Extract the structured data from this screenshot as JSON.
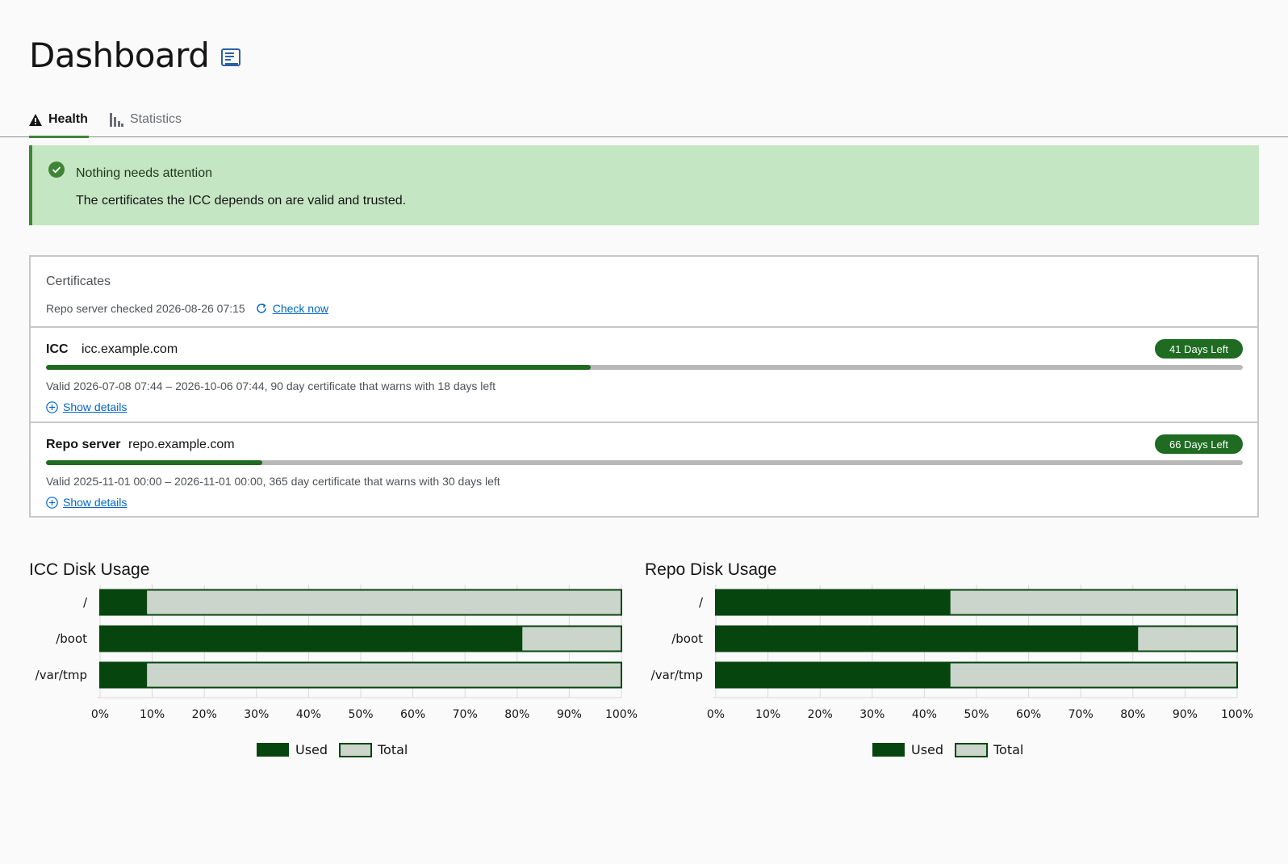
{
  "header": {
    "title": "Dashboard",
    "doc_icon": "doc-icon"
  },
  "tabs": [
    {
      "label": "Health",
      "icon": "warning-icon",
      "active": true
    },
    {
      "label": "Statistics",
      "icon": "bar-chart-icon",
      "active": false
    }
  ],
  "alert": {
    "title": "Nothing needs attention",
    "description": "The certificates the ICC depends on are valid and trusted.",
    "icon": "check-circle-icon",
    "color": "#3e8635"
  },
  "certificates": {
    "title": "Certificates",
    "checked_text": "Repo server checked 2026-08-26 07:15",
    "check_now": "Check now",
    "items": [
      {
        "name": "ICC",
        "host": "icc.example.com",
        "badge": "41 Days Left",
        "elapsed_fraction": 0.455,
        "validity": "Valid 2026-07-08 07:44 – 2026-10-06 07:44, 90 day certificate that warns with 18 days left",
        "details": "Show details"
      },
      {
        "name": "Repo server",
        "host": "repo.example.com",
        "badge": "66 Days Left",
        "elapsed_fraction": 0.181,
        "validity": "Valid 2025-11-01 00:00 – 2026-11-01 00:00, 365 day certificate that warns with 30 days left",
        "details": "Show details"
      }
    ]
  },
  "colors": {
    "accent": "#1e6b21",
    "used": "#07450f",
    "total": "#cbd5cb",
    "track": "#b8b8b8"
  },
  "chart_data": [
    {
      "type": "bar",
      "orientation": "horizontal",
      "stacked_overlay": true,
      "title": "ICC Disk Usage",
      "categories": [
        "/",
        "/boot",
        "/var/tmp"
      ],
      "series": [
        {
          "name": "Used",
          "values": [
            9,
            81,
            9
          ]
        },
        {
          "name": "Total",
          "values": [
            100,
            100,
            100
          ]
        }
      ],
      "xlim": [
        0,
        100
      ],
      "ticks": [
        "0%",
        "10%",
        "20%",
        "30%",
        "40%",
        "50%",
        "60%",
        "70%",
        "80%",
        "90%",
        "100%"
      ],
      "grid": true,
      "legend": "bottom"
    },
    {
      "type": "bar",
      "orientation": "horizontal",
      "stacked_overlay": true,
      "title": "Repo Disk Usage",
      "categories": [
        "/",
        "/boot",
        "/var/tmp"
      ],
      "series": [
        {
          "name": "Used",
          "values": [
            45,
            81,
            45
          ]
        },
        {
          "name": "Total",
          "values": [
            100,
            100,
            100
          ]
        }
      ],
      "xlim": [
        0,
        100
      ],
      "ticks": [
        "0%",
        "10%",
        "20%",
        "30%",
        "40%",
        "50%",
        "60%",
        "70%",
        "80%",
        "90%",
        "100%"
      ],
      "grid": true,
      "legend": "bottom"
    }
  ]
}
